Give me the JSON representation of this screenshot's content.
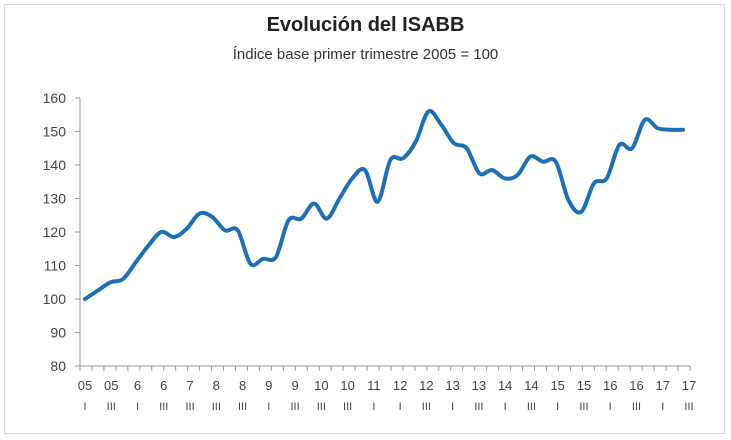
{
  "chart_data": {
    "type": "line",
    "title": "Evolución del ISABB",
    "subtitle": "Índice base primer trimestre 2005 = 100",
    "xlabel": "",
    "ylabel": "",
    "ylim": [
      80,
      160
    ],
    "yticks": [
      80,
      90,
      100,
      110,
      120,
      130,
      140,
      150,
      160
    ],
    "grid": false,
    "color": "#1f6fb5",
    "year_labels": [
      "05",
      "05",
      "6",
      "6",
      "7",
      "8",
      "8",
      "9",
      "9",
      "10",
      "10",
      "11",
      "12",
      "12",
      "13",
      "13",
      "14",
      "14",
      "15",
      "15",
      "16",
      "16",
      "17",
      "17"
    ],
    "quarter_labels": [
      "I",
      "III",
      "I",
      "III",
      "III",
      "III",
      "III",
      "I",
      "III",
      "III",
      "III",
      "I",
      "I",
      "III",
      "I",
      "III",
      "I",
      "III",
      "I",
      "III",
      "I",
      "III",
      "I",
      "III"
    ],
    "x": [
      "05-I",
      "05-II",
      "05-III",
      "05-IV",
      "06-I",
      "06-II",
      "06-III",
      "06-IV",
      "07-I",
      "07-II",
      "07-III",
      "07-IV",
      "08-I",
      "08-II",
      "08-III",
      "08-IV",
      "09-I",
      "09-II",
      "09-III",
      "09-IV",
      "10-I",
      "10-II",
      "10-III",
      "10-IV",
      "11-I",
      "11-II",
      "11-III",
      "11-IV",
      "12-I",
      "12-II",
      "12-III",
      "12-IV",
      "13-I",
      "13-II",
      "13-III",
      "13-IV",
      "14-I",
      "14-II",
      "14-III",
      "14-IV",
      "15-I",
      "15-II",
      "15-III",
      "15-IV",
      "16-I",
      "16-II",
      "16-III",
      "16-IV",
      "17-I",
      "17-II",
      "17-III"
    ],
    "series": [
      {
        "values": [
          100,
          102.5,
          105,
          106,
          111,
          116,
          120,
          118.5,
          121,
          125.5,
          124.5,
          120.5,
          120.5,
          110.5,
          112,
          112.5,
          123.5,
          124,
          128.5,
          124,
          130,
          136,
          138.5,
          129,
          141.5,
          142,
          147,
          156,
          152,
          146.5,
          145,
          137.5,
          138.5,
          136,
          137,
          142.5,
          141,
          141,
          129.5,
          126,
          134.5,
          136,
          146,
          145,
          153.5,
          151,
          150.5,
          150.5,
          150.5,
          150.5,
          150.5
        ]
      }
    ]
  }
}
